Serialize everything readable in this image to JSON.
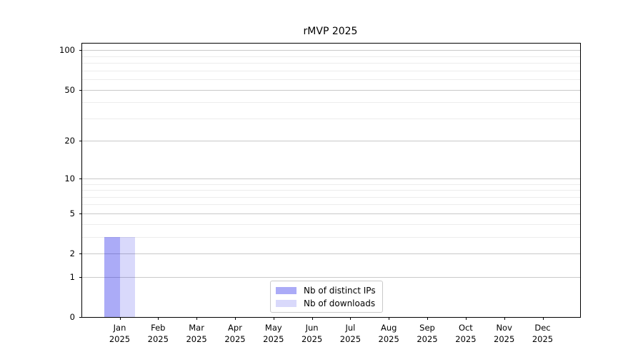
{
  "chart_data": {
    "type": "bar",
    "title": "rMVP 2025",
    "xlabel": "",
    "ylabel": "",
    "categories": [
      "Jan",
      "Feb",
      "Mar",
      "Apr",
      "May",
      "Jun",
      "Jul",
      "Aug",
      "Sep",
      "Oct",
      "Nov",
      "Dec"
    ],
    "x_tick_second_line": "2025",
    "series": [
      {
        "name": "Nb of distinct IPs",
        "color": "rgba(13,13,232,0.35)",
        "values": [
          3,
          0,
          0,
          0,
          0,
          0,
          0,
          0,
          0,
          0,
          0,
          0
        ]
      },
      {
        "name": "Nb of downloads",
        "color": "rgba(13,13,232,0.155)",
        "values": [
          3,
          0,
          0,
          0,
          0,
          0,
          0,
          0,
          0,
          0,
          0,
          0
        ]
      }
    ],
    "scale": "log1p",
    "ylim": [
      0,
      112
    ],
    "y_major_ticks": [
      0,
      1,
      2,
      5,
      10,
      20,
      50,
      100
    ],
    "y_minor_gridlines": [
      3,
      4,
      6,
      7,
      8,
      9,
      30,
      40,
      60,
      70,
      80,
      90
    ],
    "grid": true,
    "legend_position": "lower center",
    "legend_entries": [
      "Nb of distinct IPs",
      "Nb of downloads"
    ]
  }
}
